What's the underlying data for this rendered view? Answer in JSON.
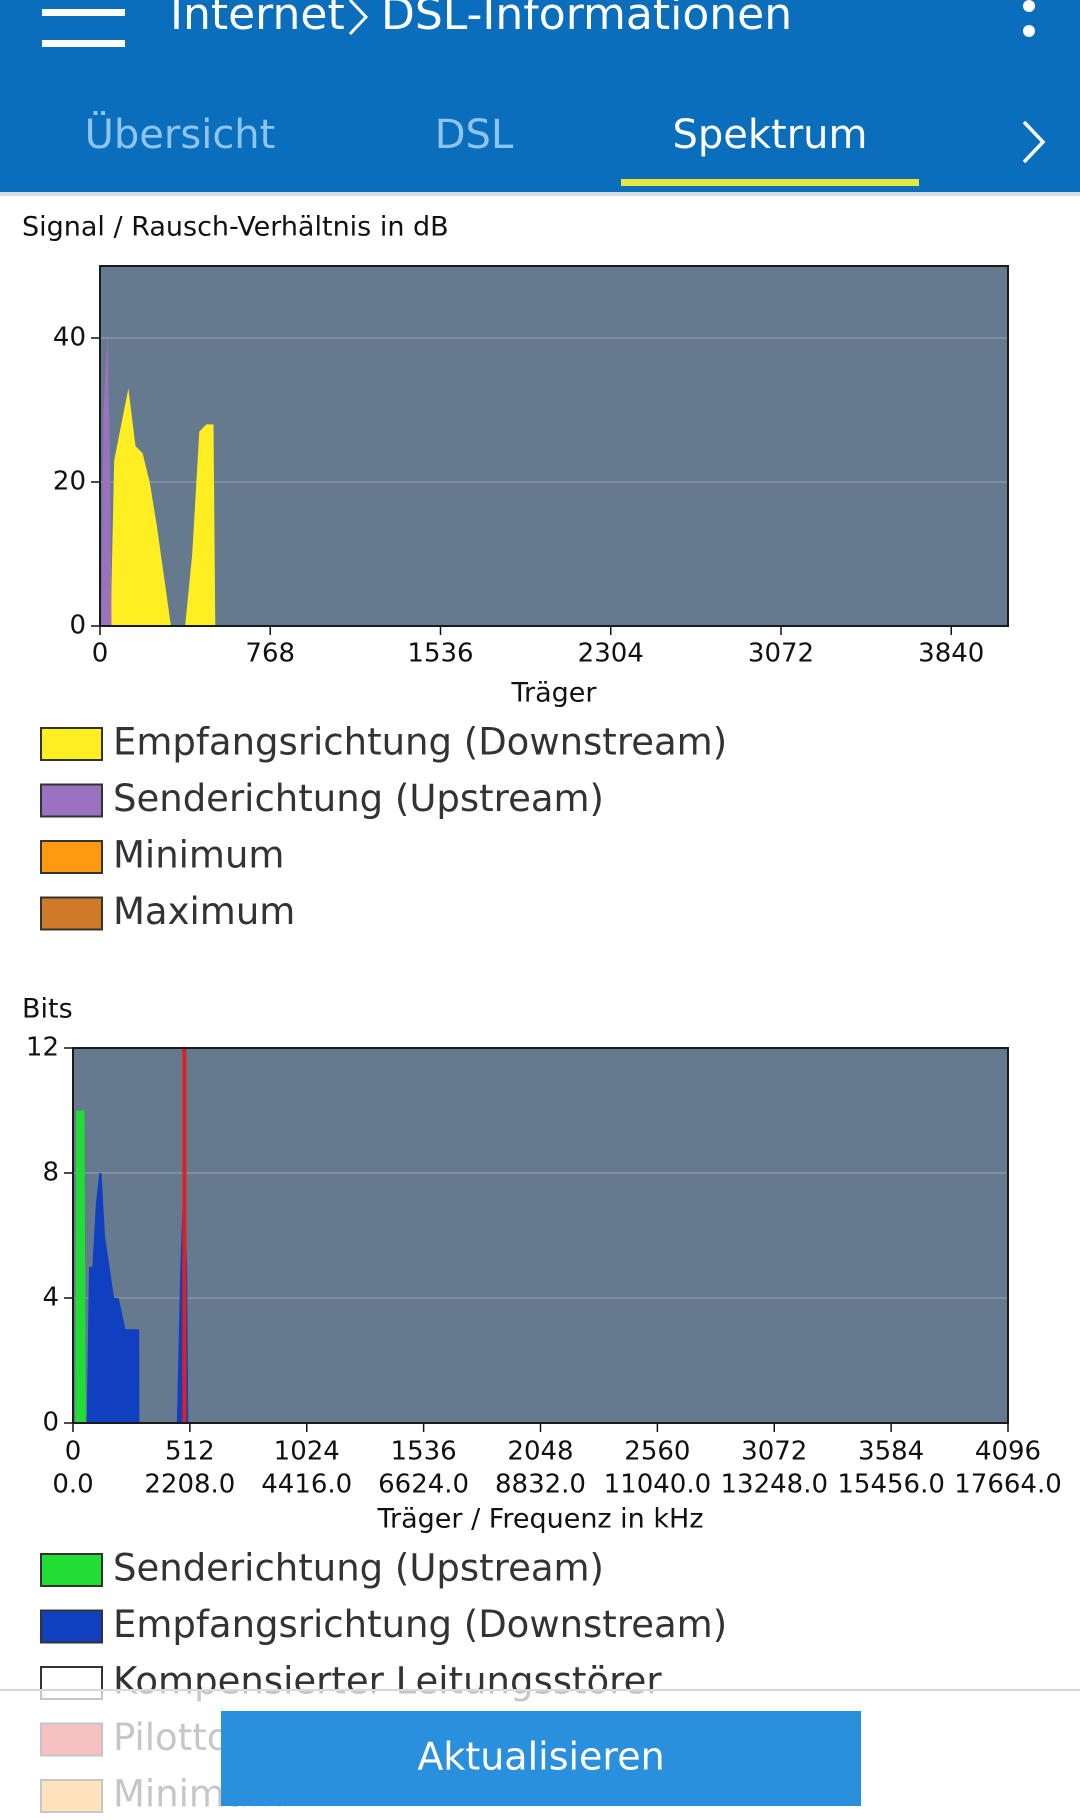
{
  "header": {
    "breadcrumb": "Internet",
    "title": "DSL-Informationen"
  },
  "tabs": [
    "Übersicht",
    "DSL",
    "Spektrum"
  ],
  "active_tab": 2,
  "chart_data": [
    {
      "type": "area",
      "title": "Signal / Rausch-Verhältnis in dB",
      "x_label": "Träger",
      "xlim": [
        0,
        4096
      ],
      "xticks": [
        0,
        768,
        1536,
        2304,
        3072,
        3840
      ],
      "ylim": [
        0,
        50
      ],
      "yticks": [
        0,
        20,
        40
      ],
      "grid": true,
      "series": [
        {
          "name": "Empfangsrichtung (Downstream)",
          "color": "#ffee22",
          "x": [
            48,
            64,
            96,
            128,
            160,
            192,
            224,
            256,
            288,
            320,
            352,
            384,
            416,
            448,
            480,
            512,
            520
          ],
          "values": [
            0,
            23,
            28,
            33,
            25,
            24,
            20,
            14,
            7,
            0,
            0,
            0,
            10,
            27,
            28,
            28,
            0
          ]
        },
        {
          "name": "Senderichtung (Upstream)",
          "color": "#9b72c0",
          "x": [
            6,
            16,
            34,
            46,
            52
          ],
          "values": [
            0,
            30,
            41,
            20,
            0
          ]
        },
        {
          "name": "Minimum",
          "color": "#ff9a10",
          "x": [],
          "values": []
        },
        {
          "name": "Maximum",
          "color": "#cf7a28",
          "x": [],
          "values": []
        }
      ]
    },
    {
      "type": "area",
      "title": "Bits",
      "x_label": "Träger / Frequenz in kHz",
      "xlim": [
        0,
        4096
      ],
      "xticks": [
        0,
        512,
        1024,
        1536,
        2048,
        2560,
        3072,
        3584,
        4096
      ],
      "x2lim": [
        0,
        17664
      ],
      "x2ticks": [
        {
          "value": 0,
          "label": "0.0"
        },
        {
          "value": 2208,
          "label": "2208.0"
        },
        {
          "value": 4416,
          "label": "4416.0"
        },
        {
          "value": 6624,
          "label": "6624.0"
        },
        {
          "value": 8832,
          "label": "8832.0"
        },
        {
          "value": 11040,
          "label": "11040.0"
        },
        {
          "value": 13248,
          "label": "13248.0"
        },
        {
          "value": 15456,
          "label": "15456.0"
        },
        {
          "value": 17664,
          "label": "17664.0"
        }
      ],
      "ylim": [
        0,
        12
      ],
      "yticks": [
        0,
        4,
        8,
        12
      ],
      "grid": true,
      "series": [
        {
          "name": "Senderichtung (Upstream)",
          "color": "#22dd33",
          "x": [
            10,
            14,
            50,
            56
          ],
          "values": [
            0,
            10,
            10,
            0
          ]
        },
        {
          "name": "Empfangsrichtung (Downstream)",
          "color": "#1040c0",
          "x": [
            60,
            70,
            85,
            100,
            115,
            125,
            140,
            160,
            180,
            200,
            230,
            260,
            290,
            291,
            440,
            455,
            470,
            480,
            490,
            500,
            505
          ],
          "values": [
            0,
            5,
            5,
            7,
            8,
            8,
            6,
            5,
            4,
            4,
            3,
            3,
            3,
            0,
            null,
            0,
            5,
            7,
            7,
            5,
            0
          ]
        },
        {
          "name": "Kompensierter Leitungsstörer",
          "color": "#ffffff",
          "x": [],
          "values": []
        },
        {
          "name": "Pilotton",
          "color": "#e02020",
          "type": "bar",
          "x": [
            488
          ],
          "values": [
            12
          ]
        },
        {
          "name": "Minimum",
          "color": "#ff9a10",
          "x": [],
          "values": []
        }
      ]
    }
  ],
  "button": "Aktualisieren"
}
